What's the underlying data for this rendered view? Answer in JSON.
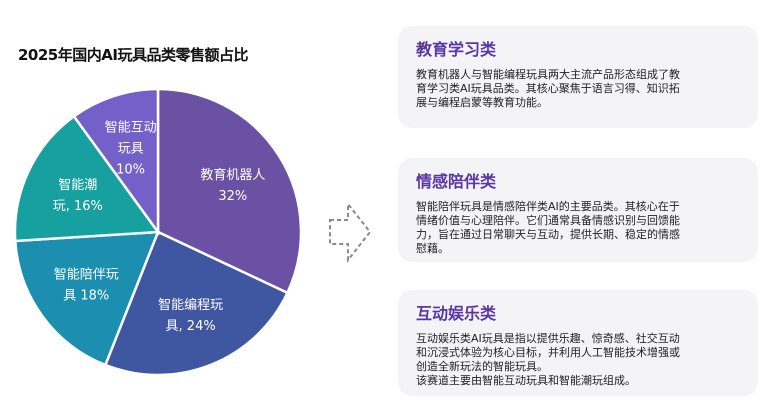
{
  "chart_data": {
    "type": "pie",
    "title": "2025年国内AI玩具品类零售额占比",
    "unit": "%",
    "slices": [
      {
        "label_lines": [
          "教育机器人",
          "32%"
        ],
        "name": "教育机器人",
        "value": 32,
        "color": "#6a51a3"
      },
      {
        "label_lines": [
          "智能编程玩",
          "具, 24%"
        ],
        "name": "智能编程玩具",
        "value": 24,
        "color": "#3f57a0"
      },
      {
        "label_lines": [
          "智能陪伴玩",
          "具 18%"
        ],
        "name": "智能陪伴玩具",
        "value": 18,
        "color": "#1c8fb0"
      },
      {
        "label_lines": [
          "智能潮",
          "玩, 16%"
        ],
        "name": "智能潮玩",
        "value": 16,
        "color": "#16a0a0"
      },
      {
        "label_lines": [
          "智能互动",
          "玩具",
          "10%"
        ],
        "name": "智能互动玩具",
        "value": 10,
        "color": "#7460c9"
      }
    ]
  },
  "cards": [
    {
      "title": "教育学习类",
      "body": "教育机器人与智能编程玩具两大主流产品形态组成了教\n育学习类AI玩具品类。其核心聚焦于语言习得、知识拓\n展与编程启蒙等教育功能。"
    },
    {
      "title": "情感陪伴类",
      "body": "智能陪伴玩具是情感陪伴类AI的主要品类。其核心在于\n情绪价值与心理陪伴。它们通常具备情感识别与回馈能\n力，旨在通过日常聊天与互动，提供长期、稳定的情感\n慰藉。"
    },
    {
      "title": "互动娱乐类",
      "body": "互动娱乐类AI玩具是指以提供乐趣、惊奇感、社交互动\n和沉浸式体验为核心目标，并利用人工智能技术增强或\n创造全新玩法的智能玩具。\n该赛道主要由智能互动玩具和智能潮玩组成。"
    }
  ],
  "arrow_icon": "dashed-right-arrow-icon"
}
